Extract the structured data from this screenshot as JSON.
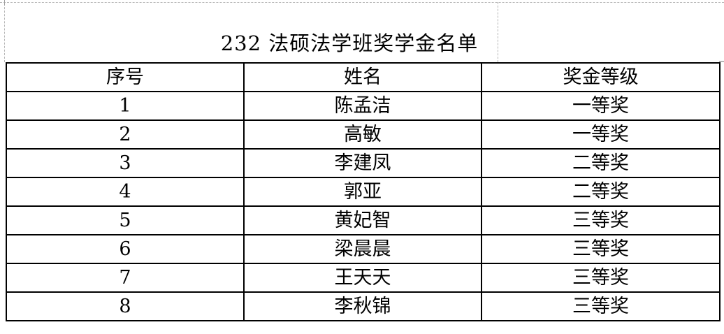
{
  "title": "232 法硕法学班奖学金名单",
  "table": {
    "headers": [
      "序号",
      "姓名",
      "奖金等级"
    ],
    "rows": [
      {
        "no": "1",
        "name": "陈孟洁",
        "level": "一等奖"
      },
      {
        "no": "2",
        "name": "高敏",
        "level": "一等奖"
      },
      {
        "no": "3",
        "name": "李建凤",
        "level": "二等奖"
      },
      {
        "no": "4",
        "name": "郭亚",
        "level": "二等奖"
      },
      {
        "no": "5",
        "name": "黄妃智",
        "level": "三等奖"
      },
      {
        "no": "6",
        "name": "梁晨晨",
        "level": "三等奖"
      },
      {
        "no": "7",
        "name": "王天天",
        "level": "三等奖"
      },
      {
        "no": "8",
        "name": "李秋锦",
        "level": "三等奖"
      }
    ]
  },
  "colors": {
    "table_border": "#000000",
    "page_guide_gray": "#b5b5b5",
    "background": "#ffffff",
    "text": "#000000"
  }
}
